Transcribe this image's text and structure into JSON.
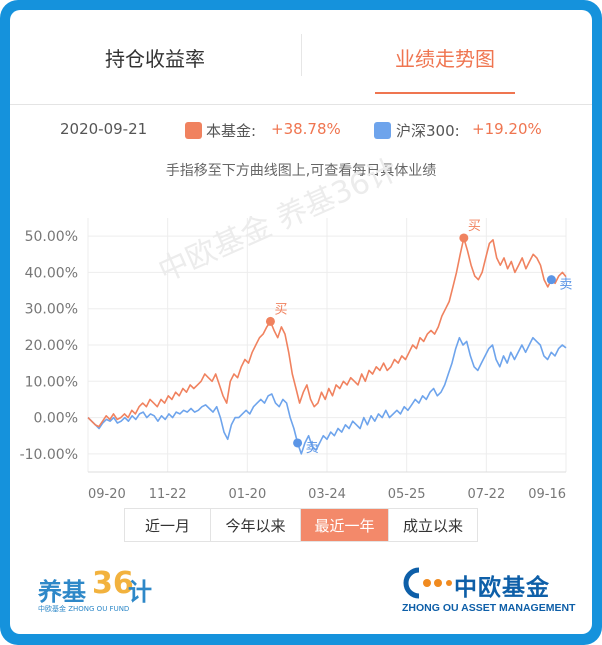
{
  "tabs": [
    {
      "label": "持仓收益率",
      "active": false
    },
    {
      "label": "业绩走势图",
      "active": true
    }
  ],
  "legend": {
    "date": "2020-09-21",
    "fund_name": "本基金:",
    "fund_value": "+38.78%",
    "index_name": "沪深300:",
    "index_value": "+19.20%",
    "fund_color": "#f0825f",
    "index_color": "#6ea4ec"
  },
  "hint": "手指移至下方曲线图上,可查看每日具体业绩",
  "watermark": "中欧基金 养基36计",
  "chart_data": {
    "type": "line",
    "x_tick_labels": [
      "09-20",
      "11-22",
      "01-20",
      "03-24",
      "05-25",
      "07-22",
      "09-16"
    ],
    "y_tick_labels": [
      "50.00%",
      "40.00%",
      "30.00%",
      "20.00%",
      "10.00%",
      "0.00%",
      "-10.00%"
    ],
    "ylim": [
      -15,
      55
    ],
    "grid": true,
    "series": [
      {
        "name": "本基金",
        "color": "#f0825f",
        "values": [
          0,
          -1,
          -2,
          -2.5,
          -1,
          0.5,
          -0.5,
          1,
          -0.5,
          0,
          1,
          0,
          2,
          1,
          3,
          4,
          3,
          5,
          4,
          3,
          5,
          4,
          6,
          5,
          7,
          6,
          8,
          7,
          9,
          8,
          9,
          10,
          12,
          11,
          10,
          12,
          9,
          6,
          4,
          10,
          12,
          11,
          14,
          16,
          15,
          18,
          20,
          22,
          23,
          25,
          26.5,
          24,
          22,
          25,
          23,
          18,
          12,
          8,
          4,
          7,
          9,
          5,
          3,
          4,
          7,
          5,
          8,
          6,
          9,
          8,
          10,
          9,
          11,
          10,
          9,
          12,
          10,
          13,
          12,
          14,
          13,
          15,
          13,
          14,
          16,
          15,
          17,
          16,
          18,
          20,
          19,
          22,
          21,
          23,
          24,
          23,
          25,
          28,
          30,
          32,
          36,
          40,
          45,
          49.5,
          46,
          42,
          39,
          38,
          40,
          44,
          48,
          49,
          44,
          42,
          44,
          41,
          43,
          40,
          42,
          44,
          41,
          43,
          45,
          44,
          42,
          38,
          36,
          38,
          37,
          39,
          40,
          38.8
        ]
      },
      {
        "name": "沪深300",
        "color": "#6ea4ec",
        "values": [
          0,
          -1,
          -2,
          -3,
          -1.5,
          -0.5,
          -1,
          0,
          -1.5,
          -1,
          0,
          -1,
          0.5,
          -0.5,
          1,
          1.5,
          0,
          1,
          0.5,
          -1,
          0.5,
          -0.5,
          1,
          0,
          1.5,
          1,
          2,
          1.5,
          2.5,
          1.5,
          2,
          3,
          3.5,
          2.5,
          1.5,
          3,
          0,
          -4,
          -6,
          -2,
          0,
          0,
          1,
          2,
          1,
          3,
          4,
          5,
          4,
          6,
          6.5,
          4,
          3,
          5,
          4,
          0,
          -3,
          -7,
          -10,
          -7,
          -5,
          -8,
          -9,
          -7,
          -5,
          -6,
          -4,
          -5,
          -3,
          -4,
          -2,
          -3,
          -1,
          -2,
          -3,
          0,
          -2,
          0.5,
          -1,
          1,
          0,
          2,
          0,
          1,
          2,
          1,
          3,
          2,
          3.5,
          5,
          4,
          6,
          5,
          7,
          8,
          6,
          7,
          9,
          12,
          15,
          19,
          22,
          20,
          21,
          17,
          14,
          13,
          15,
          17,
          19,
          20,
          16,
          14,
          17,
          15,
          18,
          16,
          18,
          20,
          18,
          20,
          22,
          21,
          20,
          17,
          16,
          18,
          17,
          19,
          20,
          19.2
        ]
      }
    ],
    "markers": [
      {
        "series": 0,
        "index": 50,
        "label": "买"
      },
      {
        "series": 1,
        "index": 57,
        "label": "卖"
      },
      {
        "series": 0,
        "index": 103,
        "label": "买"
      },
      {
        "series": 0,
        "index": 127,
        "label": "卖"
      }
    ]
  },
  "periods": [
    {
      "label": "近一月",
      "active": false
    },
    {
      "label": "今年以来",
      "active": false
    },
    {
      "label": "最近一年",
      "active": true
    },
    {
      "label": "成立以来",
      "active": false
    }
  ],
  "brand_left": {
    "name": "养基",
    "num": "36",
    "suffix": "计",
    "small": "中欧基金 ZHONG OU FUND"
  },
  "brand_right": {
    "cn": "中欧基金",
    "en": "ZHONG OU ASSET MANAGEMENT"
  }
}
